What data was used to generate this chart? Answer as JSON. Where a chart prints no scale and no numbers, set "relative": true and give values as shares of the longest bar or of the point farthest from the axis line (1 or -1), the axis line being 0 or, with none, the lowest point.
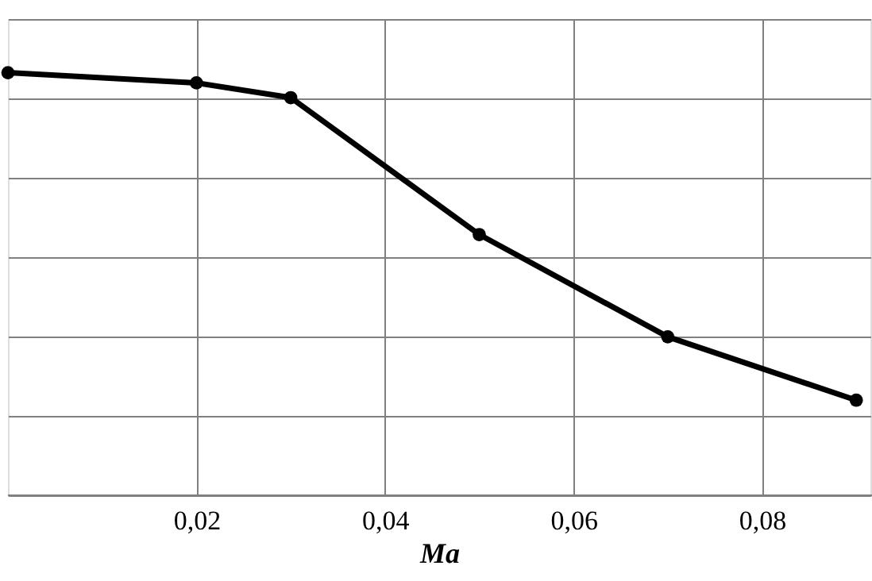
{
  "chart_data": {
    "type": "line",
    "xlabel": "Ma",
    "relative": true,
    "x": [
      0.0,
      0.02,
      0.03,
      0.05,
      0.07,
      0.09
    ],
    "series": [
      {
        "color": "#000000",
        "values": [
          1,
          0.976,
          0.941,
          0.617,
          0.375,
          0.225
        ]
      }
    ],
    "xlim": [
      0.0,
      0.0915
    ],
    "xticks": [
      {
        "value": 0.02,
        "label": "0,02"
      },
      {
        "value": 0.04,
        "label": "0,04"
      },
      {
        "value": 0.06,
        "label": "0,06"
      },
      {
        "value": 0.08,
        "label": "0,08"
      }
    ],
    "grid": true,
    "marker": "circle",
    "line_style": "solid",
    "tick_labels": "x"
  }
}
